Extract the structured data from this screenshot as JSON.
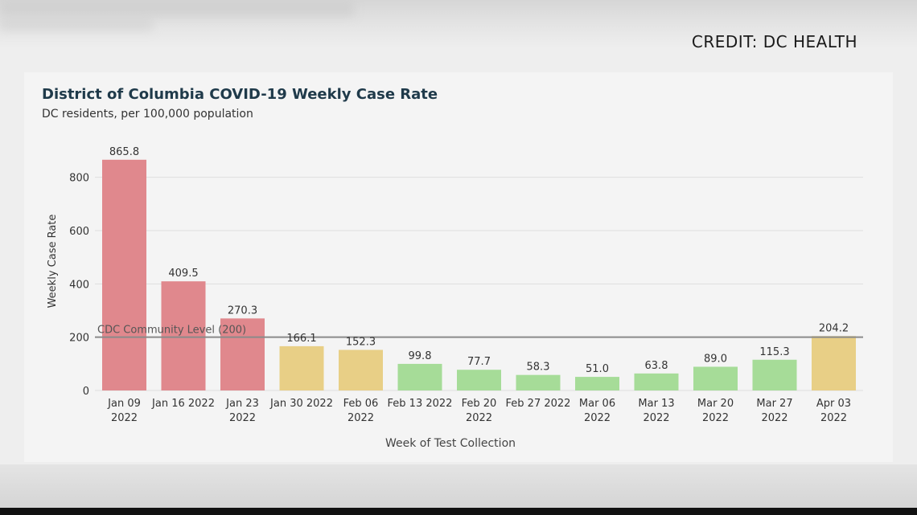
{
  "credit": "CREDIT: DC HEALTH",
  "chart_data": {
    "type": "bar",
    "title": "District of Columbia COVID-19 Weekly Case Rate",
    "subtitle": "DC residents, per 100,000 population",
    "xlabel": "Week of Test Collection",
    "ylabel": "Weekly Case Rate",
    "ylim": [
      0,
      900
    ],
    "yticks": [
      0,
      200,
      400,
      600,
      800
    ],
    "grid": true,
    "categories": [
      [
        "Jan 09",
        "2022"
      ],
      [
        "Jan 16 2022"
      ],
      [
        "Jan 23",
        "2022"
      ],
      [
        "Jan 30 2022"
      ],
      [
        "Feb 06",
        "2022"
      ],
      [
        "Feb 13 2022"
      ],
      [
        "Feb 20",
        "2022"
      ],
      [
        "Feb 27 2022"
      ],
      [
        "Mar 06",
        "2022"
      ],
      [
        "Mar 13",
        "2022"
      ],
      [
        "Mar 20",
        "2022"
      ],
      [
        "Mar 27",
        "2022"
      ],
      [
        "Apr 03",
        "2022"
      ]
    ],
    "values": [
      865.8,
      409.5,
      270.3,
      166.1,
      152.3,
      99.8,
      77.7,
      58.3,
      51.0,
      63.8,
      89.0,
      115.3,
      204.2
    ],
    "value_labels": [
      "865.8",
      "409.5",
      "270.3",
      "166.1",
      "152.3",
      "99.8",
      "77.7",
      "58.3",
      "51.0",
      "63.8",
      "89.0",
      "115.3",
      "204.2"
    ],
    "bar_colors": [
      "#e0888d",
      "#e0888d",
      "#e0888d",
      "#e8cf86",
      "#e8cf86",
      "#a6dc98",
      "#a6dc98",
      "#a6dc98",
      "#a6dc98",
      "#a6dc98",
      "#a6dc98",
      "#a6dc98",
      "#e8cf86"
    ],
    "reference_line": {
      "value": 200,
      "label": "CDC Community Level (200)",
      "color": "#8a8a8a"
    }
  }
}
